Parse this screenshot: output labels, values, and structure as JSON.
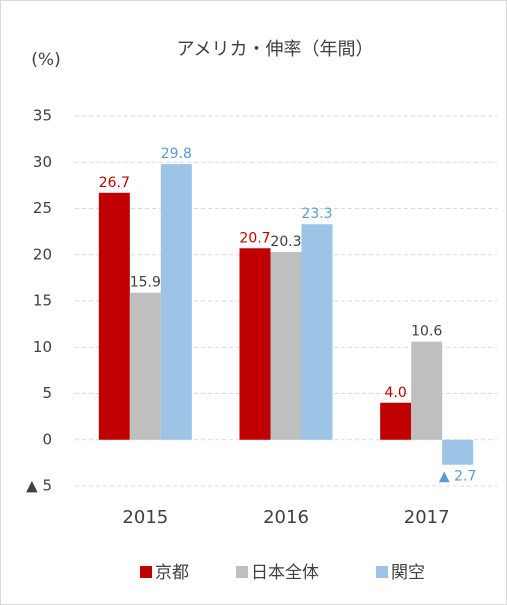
{
  "chart_data": {
    "type": "bar",
    "title": "アメリカ・伸率（年間）",
    "y_label": "(%)",
    "categories": [
      "2015",
      "2016",
      "2017"
    ],
    "series": [
      {
        "name": "京都",
        "color": "#c00000",
        "label_color": "#c00000",
        "values": [
          26.7,
          20.7,
          4.0
        ],
        "value_labels": [
          "26.7",
          "20.7",
          "4.0"
        ]
      },
      {
        "name": "日本全体",
        "color": "#bfbfbf",
        "label_color": "#404040",
        "values": [
          15.9,
          20.3,
          10.6
        ],
        "value_labels": [
          "15.9",
          "20.3",
          "10.6"
        ]
      },
      {
        "name": "関空",
        "color": "#9dc3e6",
        "label_color": "#5b9bd5",
        "values": [
          29.8,
          23.3,
          -2.7
        ],
        "value_labels": [
          "29.8",
          "23.3",
          "▲ 2.7"
        ]
      }
    ],
    "ylim": [
      -5,
      35
    ],
    "yticks": [
      {
        "value": -5,
        "label": "▲ 5"
      },
      0,
      5,
      10,
      15,
      20,
      25,
      30,
      35
    ],
    "grid": true,
    "legend": "bottom"
  }
}
